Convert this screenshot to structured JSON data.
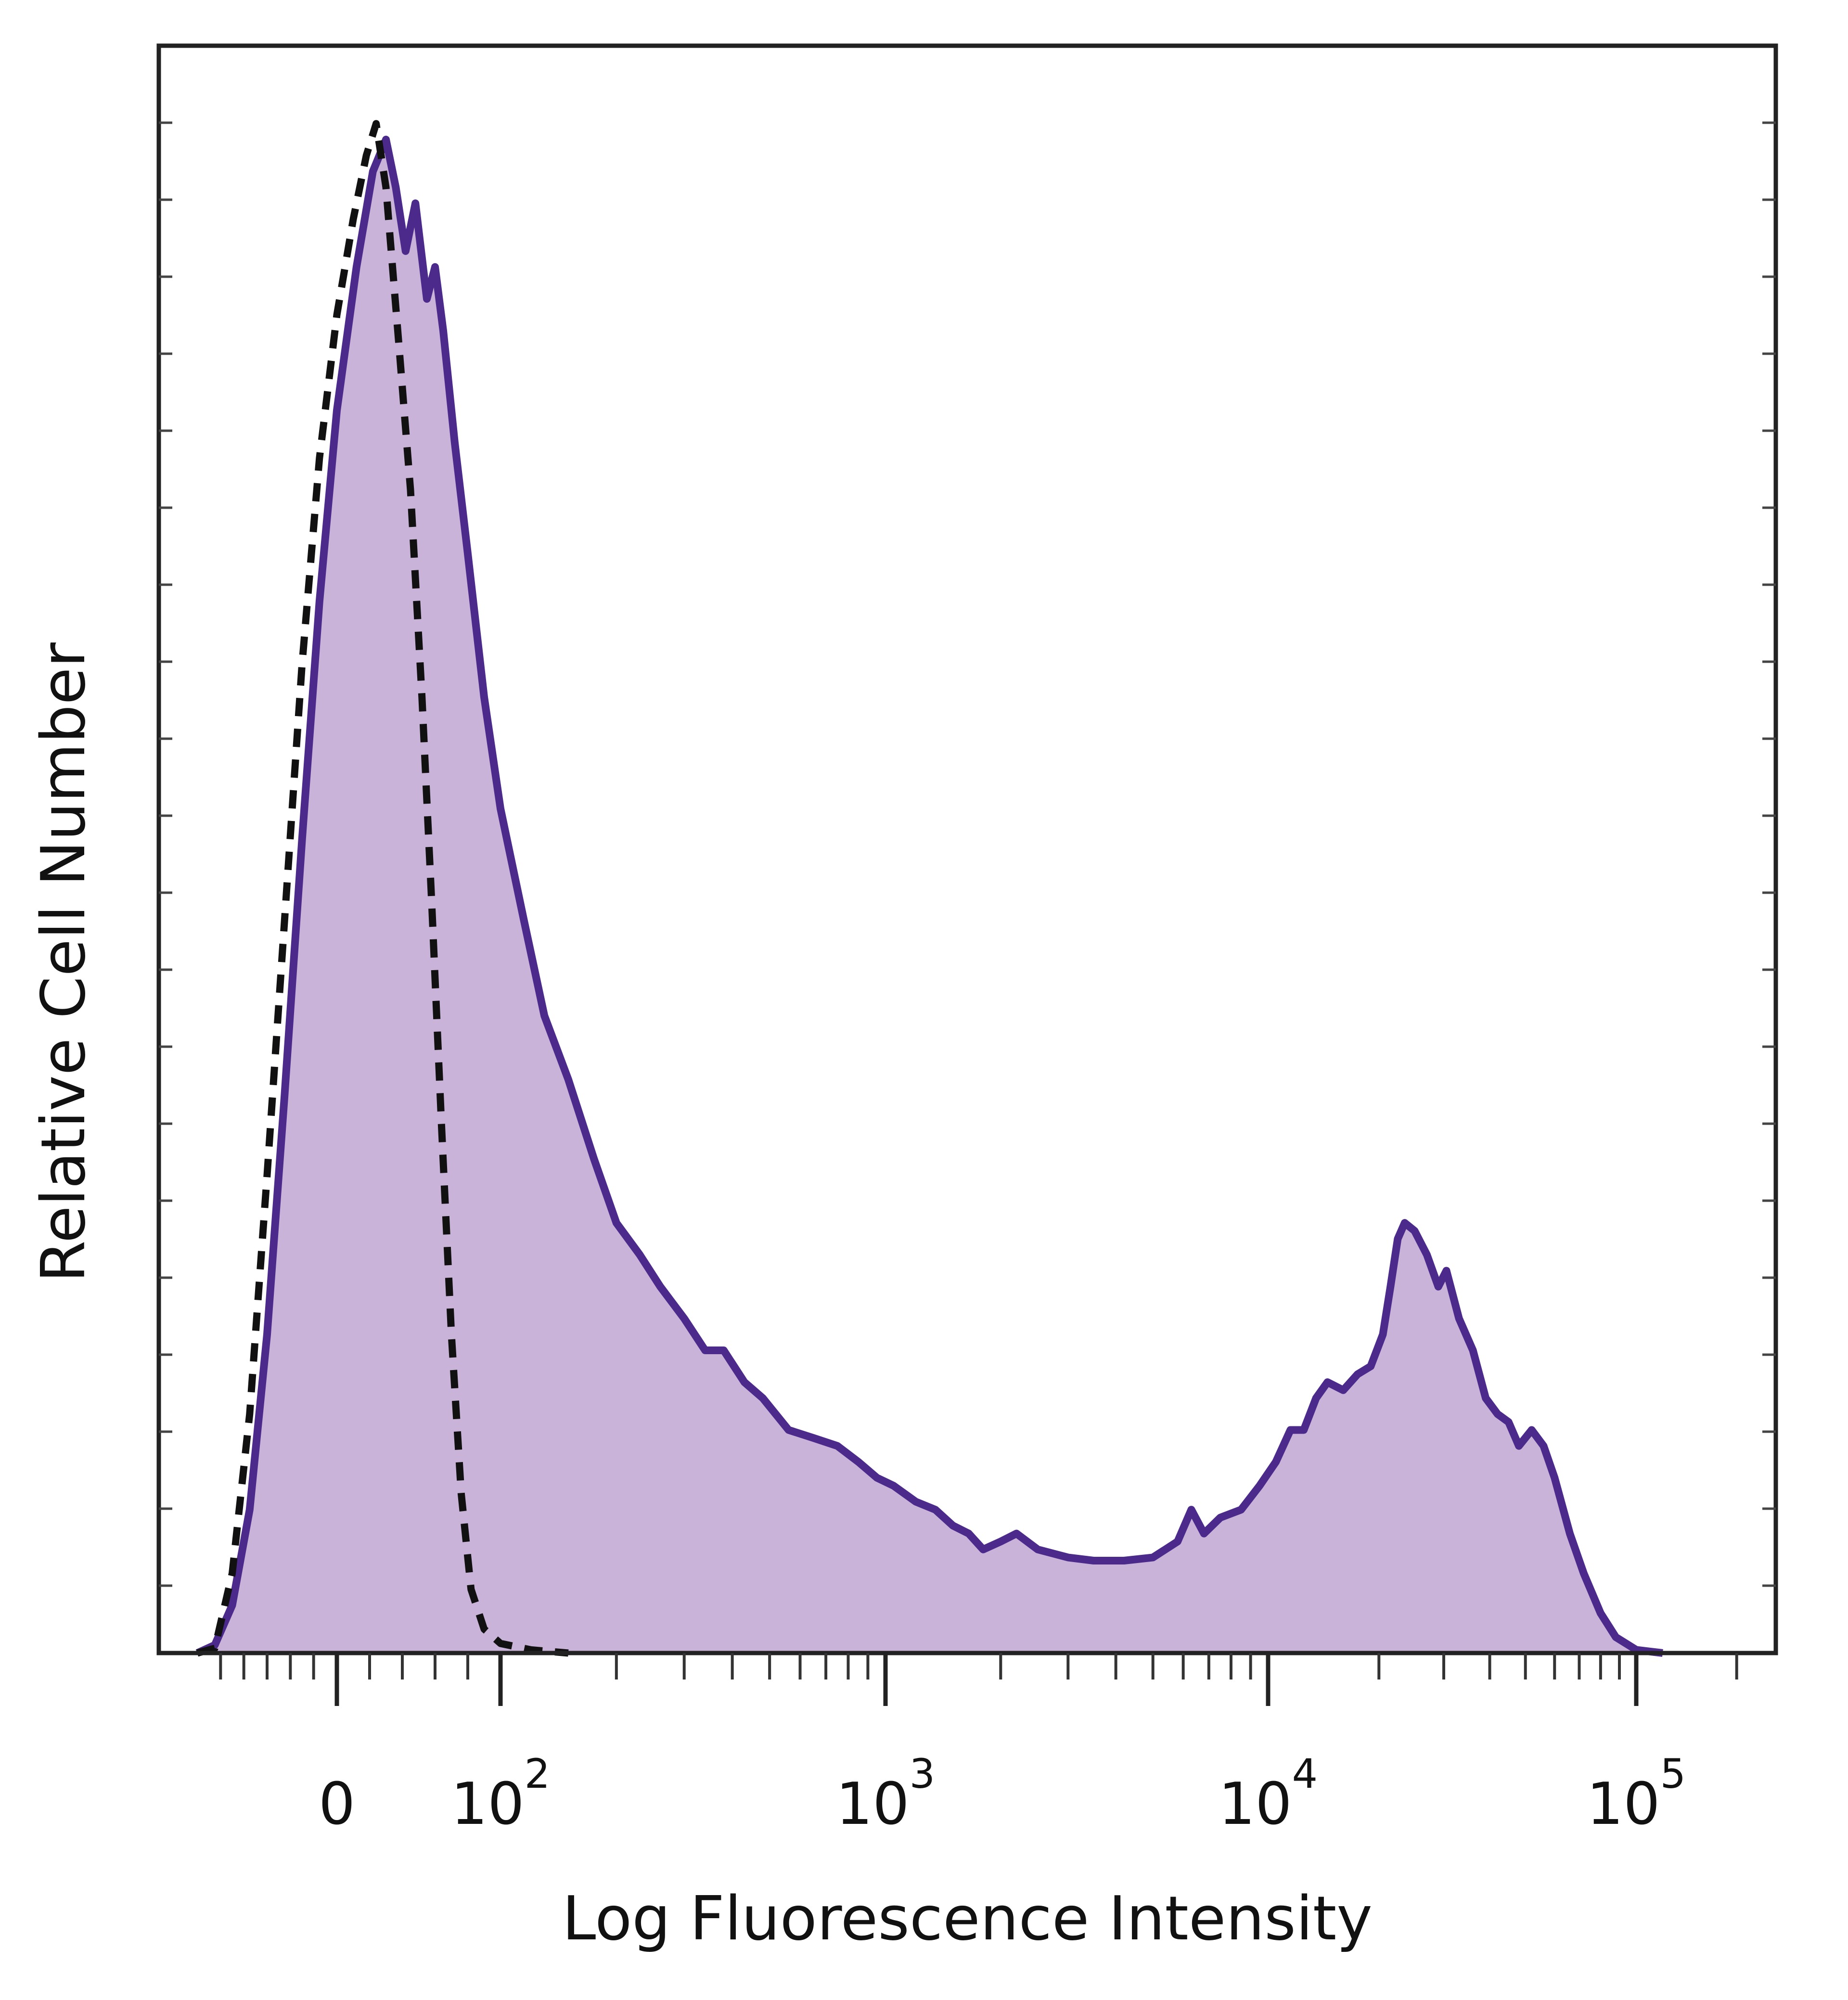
{
  "chart_data": {
    "type": "area",
    "title": "",
    "xlabel": "Log Fluorescence Intensity",
    "ylabel": "Relative Cell Number",
    "x_scale": "biexponential",
    "x_ticks": [
      {
        "value": 0,
        "label": "0"
      },
      {
        "value": 100,
        "base": "10",
        "exp": "2"
      },
      {
        "value": 1000,
        "base": "10",
        "exp": "3"
      },
      {
        "value": 10000,
        "base": "10",
        "exp": "4"
      },
      {
        "value": 100000,
        "base": "10",
        "exp": "5"
      }
    ],
    "xlim": [
      -120,
      262000
    ],
    "ylim": [
      0,
      100
    ],
    "grid": false,
    "legend": "none",
    "series": [
      {
        "style": "filled",
        "fill_color": "#c9b3d8",
        "line_color": "#4b2a8c",
        "points": [
          [
            -120,
            0
          ],
          [
            -105,
            0.5
          ],
          [
            -90,
            3
          ],
          [
            -75,
            9
          ],
          [
            -60,
            20
          ],
          [
            -45,
            35
          ],
          [
            -30,
            51
          ],
          [
            -15,
            66
          ],
          [
            0,
            78
          ],
          [
            12,
            87
          ],
          [
            22,
            93
          ],
          [
            30,
            95
          ],
          [
            36,
            92
          ],
          [
            42,
            88
          ],
          [
            48,
            91
          ],
          [
            55,
            85
          ],
          [
            60,
            87
          ],
          [
            65,
            83
          ],
          [
            72,
            76
          ],
          [
            80,
            69
          ],
          [
            90,
            60
          ],
          [
            100,
            53
          ],
          [
            115,
            46
          ],
          [
            130,
            40
          ],
          [
            150,
            36
          ],
          [
            175,
            31
          ],
          [
            200,
            27
          ],
          [
            230,
            25
          ],
          [
            260,
            23
          ],
          [
            300,
            21
          ],
          [
            340,
            19
          ],
          [
            380,
            19
          ],
          [
            430,
            17
          ],
          [
            480,
            16
          ],
          [
            560,
            14
          ],
          [
            650,
            13.5
          ],
          [
            750,
            13
          ],
          [
            850,
            12
          ],
          [
            950,
            11
          ],
          [
            1050,
            10.5
          ],
          [
            1200,
            9.5
          ],
          [
            1350,
            9
          ],
          [
            1500,
            8
          ],
          [
            1650,
            7.5
          ],
          [
            1800,
            6.5
          ],
          [
            2000,
            7
          ],
          [
            2200,
            7.5
          ],
          [
            2500,
            6.5
          ],
          [
            3000,
            6
          ],
          [
            3500,
            5.8
          ],
          [
            4200,
            5.8
          ],
          [
            5000,
            6
          ],
          [
            5800,
            7
          ],
          [
            6300,
            9
          ],
          [
            6800,
            7.5
          ],
          [
            7500,
            8.5
          ],
          [
            8500,
            9
          ],
          [
            9500,
            10.5
          ],
          [
            10500,
            12
          ],
          [
            11500,
            14
          ],
          [
            12500,
            14
          ],
          [
            13500,
            16
          ],
          [
            14500,
            17
          ],
          [
            16000,
            16.5
          ],
          [
            17500,
            17.5
          ],
          [
            19000,
            18
          ],
          [
            20500,
            20
          ],
          [
            21500,
            23
          ],
          [
            22500,
            26
          ],
          [
            23500,
            27
          ],
          [
            25000,
            26.5
          ],
          [
            27000,
            25
          ],
          [
            29000,
            23
          ],
          [
            30500,
            24
          ],
          [
            33000,
            21
          ],
          [
            36000,
            19
          ],
          [
            39000,
            16
          ],
          [
            42000,
            15
          ],
          [
            45000,
            14.5
          ],
          [
            48000,
            13
          ],
          [
            52000,
            14
          ],
          [
            56000,
            13
          ],
          [
            60000,
            11
          ],
          [
            66000,
            7.5
          ],
          [
            72000,
            5
          ],
          [
            80000,
            2.5
          ],
          [
            88000,
            1
          ],
          [
            100000,
            0.2
          ],
          [
            120000,
            0
          ]
        ]
      },
      {
        "style": "dashed",
        "line_color": "#111111",
        "points": [
          [
            -120,
            0
          ],
          [
            -105,
            0.3
          ],
          [
            -90,
            5
          ],
          [
            -75,
            15
          ],
          [
            -60,
            30
          ],
          [
            -45,
            46
          ],
          [
            -30,
            62
          ],
          [
            -15,
            75
          ],
          [
            0,
            84
          ],
          [
            10,
            90
          ],
          [
            18,
            94
          ],
          [
            24,
            96
          ],
          [
            30,
            92
          ],
          [
            38,
            82
          ],
          [
            45,
            73
          ],
          [
            52,
            60
          ],
          [
            58,
            47
          ],
          [
            64,
            33
          ],
          [
            70,
            20
          ],
          [
            76,
            10
          ],
          [
            82,
            4
          ],
          [
            90,
            1.5
          ],
          [
            100,
            0.6
          ],
          [
            120,
            0.2
          ],
          [
            150,
            0
          ]
        ]
      }
    ]
  }
}
